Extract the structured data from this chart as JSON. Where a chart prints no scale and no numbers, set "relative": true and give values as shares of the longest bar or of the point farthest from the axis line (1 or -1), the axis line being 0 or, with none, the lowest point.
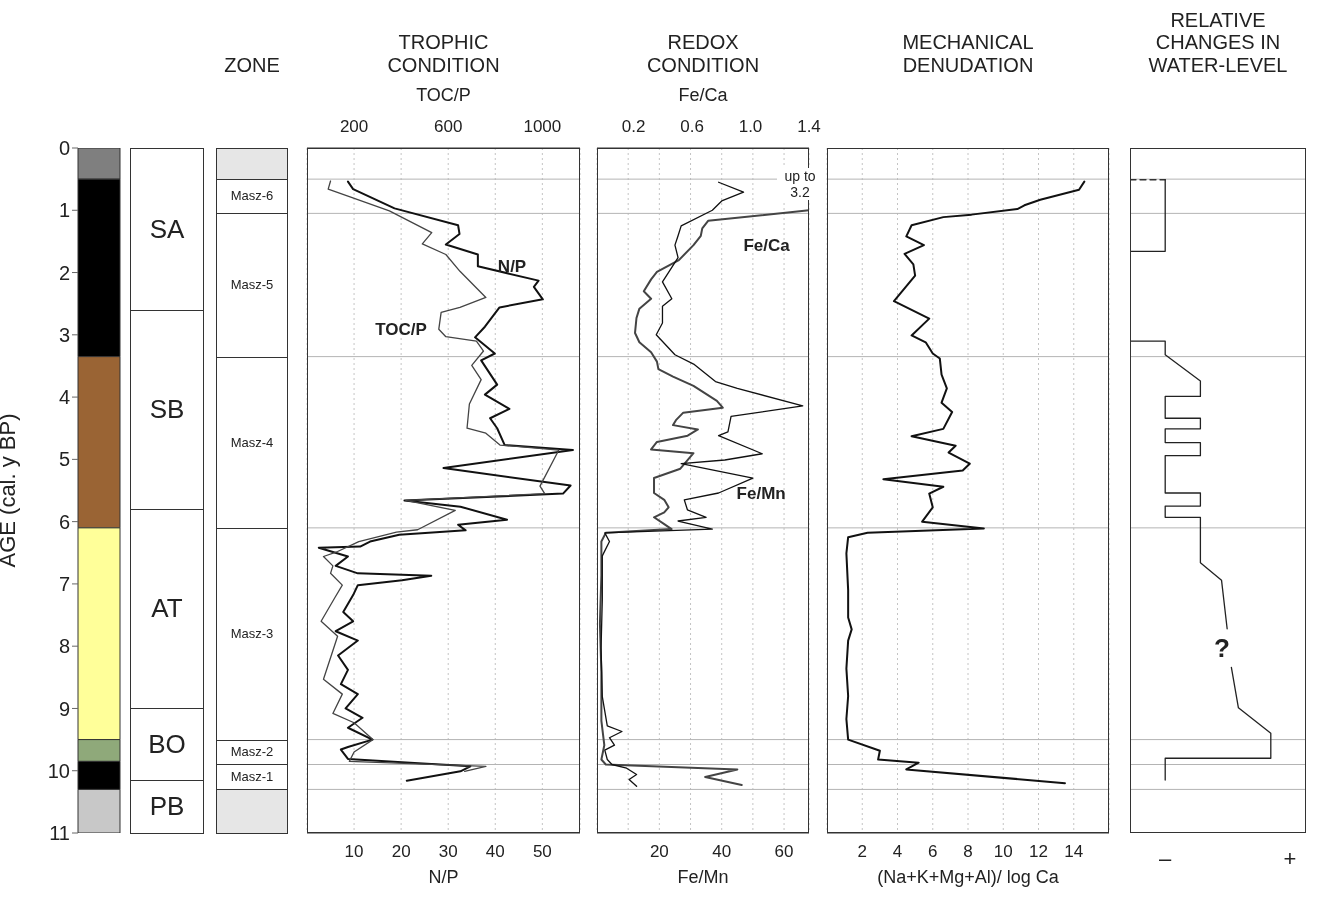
{
  "chart_data": [
    {
      "type": "bar",
      "stacked": true,
      "categories": [
        null
      ],
      "ylabel": "AGE (cal. y BP)",
      "ylim": [
        11,
        0
      ],
      "yticks": [
        0,
        1,
        2,
        3,
        4,
        5,
        6,
        7,
        8,
        9,
        10,
        11
      ],
      "tick_labels": "y",
      "series": [
        {
          "color": "#7f7f7f",
          "values": [
            0.5
          ]
        },
        {
          "color": "#000000",
          "values": [
            2.85
          ]
        },
        {
          "color": "#9a6434",
          "values": [
            2.75
          ]
        },
        {
          "color": "#ffff99",
          "values": [
            3.4
          ]
        },
        {
          "color": "#8fa97a",
          "values": [
            0.35
          ]
        },
        {
          "color": "#000000",
          "values": [
            0.45
          ]
        },
        {
          "color": "#c8c8c8",
          "values": [
            0.7
          ]
        }
      ]
    },
    {
      "type": "other",
      "categories": [
        "SA",
        "SB",
        "AT",
        "BO",
        "PB"
      ]
    },
    {
      "type": "other",
      "title": "ZONE",
      "categories": [
        "Masz-6",
        "Masz-5",
        "Masz-4",
        "Masz-3",
        "Masz-2",
        "Masz-1"
      ]
    },
    {
      "type": "line",
      "orientation": "horizontal",
      "title": "TROPHIC CONDITION",
      "xlabel": "N/P",
      "x2label": "TOC/P",
      "xlim": [
        0,
        58
      ],
      "xticks": [
        10,
        20,
        30,
        40,
        50
      ],
      "x2lim": [
        0,
        1160
      ],
      "x2ticks": [
        200,
        600,
        1000
      ],
      "ylim": [
        11,
        0
      ],
      "tick_labels": "x",
      "grid": "x",
      "ref_lines": [
        {
          "axis": "y",
          "value": 0.5,
          "color": "#b4b4b4"
        },
        {
          "axis": "y",
          "value": 1.05,
          "color": "#b4b4b4"
        },
        {
          "axis": "y",
          "value": 3.35,
          "color": "#b4b4b4"
        },
        {
          "axis": "y",
          "value": 6.1,
          "color": "#b4b4b4"
        },
        {
          "axis": "y",
          "value": 9.5,
          "color": "#b4b4b4"
        },
        {
          "axis": "y",
          "value": 9.9,
          "color": "#b4b4b4"
        },
        {
          "axis": "y",
          "value": 10.3,
          "color": "#b4b4b4"
        }
      ],
      "series": [
        {
          "name": "N/P",
          "color": "#111111",
          "x": [
            0.54,
            0.66,
            0.97,
            1.24,
            1.38,
            1.55,
            1.71,
            1.9,
            2.13,
            2.23,
            2.43,
            2.56,
            2.87,
            3.04,
            3.3,
            3.41,
            3.8,
            3.96,
            4.19,
            4.34,
            4.5,
            4.77,
            4.85,
            5.14,
            5.42,
            5.55,
            5.66,
            5.76,
            5.97,
            6.05,
            6.14,
            6.21,
            6.32,
            6.4,
            6.42,
            6.56,
            6.71,
            6.83,
            6.87,
            6.94,
            7.02,
            7.18,
            7.45,
            7.6,
            7.76,
            7.91,
            8.15,
            8.38,
            8.61,
            8.77,
            9.0,
            9.15,
            9.31,
            9.5,
            9.62,
            9.66,
            9.81,
            9.93,
            10.01,
            10.16
          ],
          "values": [
            8.7,
            9.8,
            18.6,
            32.1,
            32.4,
            29.5,
            36.3,
            36.3,
            49.2,
            48.2,
            50.1,
            40.9,
            37.8,
            35.7,
            39.9,
            37,
            40.4,
            37.8,
            43,
            38.9,
            40.4,
            42,
            56.5,
            29,
            56,
            54.4,
            20.7,
            32.6,
            42.5,
            32.1,
            33.7,
            19.6,
            13.4,
            11.3,
            2.5,
            8.7,
            6.1,
            10.8,
            26.4,
            20.2,
            10.8,
            9.8,
            7.7,
            9.8,
            6.1,
            10.8,
            6.6,
            8.7,
            7.2,
            10.8,
            8.2,
            11.8,
            8.7,
            13.9,
            8.7,
            7.2,
            8.7,
            34.7,
            32.6,
            21.2
          ]
        },
        {
          "name": "TOC/P",
          "color": "#444444",
          "axis": "x2",
          "x": [
            0.53,
            0.66,
            0.78,
            1.01,
            1.36,
            1.54,
            1.71,
            1.98,
            2.4,
            2.56,
            2.64,
            2.91,
            3.03,
            3.1,
            3.26,
            3.49,
            3.72,
            4.11,
            4.5,
            4.58,
            4.77,
            4.85,
            5.43,
            5.55,
            5.66,
            5.82,
            6.13,
            6.17,
            6.32,
            6.48,
            6.56,
            6.71,
            6.83,
            7.02,
            7.21,
            7.6,
            7.84,
            8.53,
            8.77,
            9.08,
            9.23,
            9.5,
            9.7,
            9.85,
            9.93,
            10.01
          ],
          "values": [
            100,
            90,
            180,
            350,
            530,
            490,
            590,
            650,
            760,
            650,
            570,
            560,
            590,
            720,
            750,
            700,
            740,
            690,
            680,
            760,
            820,
            1070,
            990,
            1010,
            420,
            630,
            470,
            380,
            220,
            130,
            70,
            110,
            100,
            150,
            120,
            60,
            130,
            70,
            150,
            110,
            200,
            280,
            200,
            180,
            760,
            670
          ]
        }
      ]
    },
    {
      "type": "line",
      "orientation": "horizontal",
      "title": "REDOX CONDITION",
      "xlabel": "Fe/Mn",
      "x2label": "Fe/Ca",
      "xlim": [
        0,
        68
      ],
      "xticks": [
        {
          "value": 10,
          "label": null
        },
        20,
        {
          "value": 30,
          "label": null
        },
        40,
        {
          "value": 50,
          "label": null
        },
        60
      ],
      "x2lim": [
        -0.05,
        1.4
      ],
      "x2ticks": [
        0.2,
        0.6,
        {
          "value": 1,
          "label": "1.0"
        },
        1.4
      ],
      "ylim": [
        11,
        0
      ],
      "tick_labels": "x",
      "grid": "x",
      "annotations": [
        "up to 3.2"
      ],
      "ref_lines": [
        {
          "axis": "y",
          "value": 0.5,
          "color": "#b4b4b4"
        },
        {
          "axis": "y",
          "value": 1.05,
          "color": "#b4b4b4"
        },
        {
          "axis": "y",
          "value": 3.35,
          "color": "#b4b4b4"
        },
        {
          "axis": "y",
          "value": 6.1,
          "color": "#b4b4b4"
        },
        {
          "axis": "y",
          "value": 9.5,
          "color": "#b4b4b4"
        },
        {
          "axis": "y",
          "value": 9.9,
          "color": "#b4b4b4"
        },
        {
          "axis": "y",
          "value": 10.3,
          "color": "#b4b4b4"
        }
      ],
      "series": [
        {
          "name": "Fe/Ca",
          "color": "#444444",
          "axis": "x2",
          "x": [
            1.0,
            1.17,
            1.29,
            1.41,
            1.56,
            1.8,
            1.99,
            2.11,
            2.3,
            2.42,
            2.58,
            2.73,
            2.97,
            3.12,
            3.28,
            3.43,
            3.55,
            3.67,
            3.82,
            4.06,
            4.17,
            4.25,
            4.37,
            4.45,
            4.52,
            4.62,
            4.72,
            4.84,
            4.9,
            5.15,
            5.3,
            5.54,
            5.65,
            5.77,
            5.85,
            5.93,
            6.04,
            6.12,
            6.18,
            6.32,
            6.86,
            7.64,
            8.42,
            9.2,
            9.59,
            9.82,
            9.9,
            9.98,
            10.1,
            10.23
          ],
          "values": [
            1.4,
            0.71,
            0.67,
            0.66,
            0.61,
            0.51,
            0.36,
            0.32,
            0.27,
            0.32,
            0.24,
            0.22,
            0.21,
            0.24,
            0.32,
            0.36,
            0.37,
            0.47,
            0.61,
            0.77,
            0.81,
            0.54,
            0.49,
            0.47,
            0.64,
            0.57,
            0.36,
            0.32,
            0.61,
            0.52,
            0.34,
            0.34,
            0.41,
            0.44,
            0.41,
            0.34,
            0.41,
            0.46,
            0.01,
            -0.02,
            -0.02,
            -0.03,
            -0.02,
            -0.02,
            0,
            -0.02,
            0.01,
            0.91,
            0.69,
            0.94
          ]
        },
        {
          "name": "Fe/Mn",
          "color": "#111111",
          "x": [
            0.55,
            0.71,
            0.85,
            1.0,
            1.25,
            1.41,
            1.56,
            1.76,
            2.15,
            2.42,
            2.54,
            2.81,
            3.0,
            3.32,
            3.47,
            3.75,
            3.86,
            4.14,
            4.31,
            4.56,
            4.62,
            4.91,
            5.01,
            5.07,
            5.3,
            5.54,
            5.65,
            5.81,
            5.93,
            5.99,
            6.12,
            6.18,
            6.32,
            6.55,
            7.25,
            8.03,
            8.81,
            9.28,
            9.37,
            9.47,
            9.59,
            9.67,
            9.82,
            9.9,
            9.96,
            10.06,
            10.14,
            10.25
          ],
          "values": [
            39,
            47,
            40,
            37,
            27,
            26,
            25,
            26,
            21,
            24,
            21,
            21,
            19,
            25,
            31,
            38,
            45,
            66,
            43,
            42,
            39,
            53,
            41,
            27,
            50,
            39,
            28,
            29,
            35,
            26,
            37,
            2.5,
            4,
            1.7,
            1.7,
            1.3,
            1.7,
            3.3,
            8,
            4,
            5.6,
            2.5,
            3.3,
            4.8,
            9.5,
            12.7,
            10.3,
            12.7
          ]
        }
      ]
    },
    {
      "type": "line",
      "orientation": "horizontal",
      "title": "MECHANICAL DENUDATION",
      "xlabel": "(Na+K+Mg+Al)/ log Ca",
      "xlim": [
        0,
        16
      ],
      "xticks": [
        2,
        4,
        6,
        8,
        10,
        12,
        14
      ],
      "ylim": [
        11,
        0
      ],
      "tick_labels": "x",
      "grid": "x",
      "ref_lines": [
        {
          "axis": "y",
          "value": 0.5,
          "color": "#b4b4b4"
        },
        {
          "axis": "y",
          "value": 1.05,
          "color": "#b4b4b4"
        },
        {
          "axis": "y",
          "value": 3.35,
          "color": "#b4b4b4"
        },
        {
          "axis": "y",
          "value": 6.1,
          "color": "#b4b4b4"
        },
        {
          "axis": "y",
          "value": 9.5,
          "color": "#b4b4b4"
        },
        {
          "axis": "y",
          "value": 9.9,
          "color": "#b4b4b4"
        },
        {
          "axis": "y",
          "value": 10.3,
          "color": "#b4b4b4"
        }
      ],
      "series": [
        {
          "color": "#111111",
          "x": [
            0.54,
            0.67,
            0.83,
            0.92,
            0.98,
            1.07,
            1.11,
            1.24,
            1.42,
            1.56,
            1.7,
            1.87,
            2.05,
            2.46,
            2.74,
            3.01,
            3.12,
            3.3,
            3.38,
            3.64,
            3.86,
            4.09,
            4.24,
            4.51,
            4.63,
            4.78,
            4.89,
            5.07,
            5.18,
            5.32,
            5.44,
            5.55,
            5.77,
            6.0,
            6.11,
            6.18,
            6.25,
            6.51,
            7.1,
            7.54,
            7.73,
            7.91,
            8.36,
            8.8,
            9.17,
            9.5,
            9.68,
            9.82,
            9.87,
            9.98,
            10.2
          ],
          "values": [
            14.6,
            14.3,
            12.1,
            11.2,
            10.8,
            8.2,
            6.6,
            4.8,
            4.5,
            5.5,
            4.4,
            4.9,
            5,
            3.8,
            5.8,
            4.8,
            5.6,
            6,
            6.4,
            6.5,
            6.8,
            6.5,
            7.1,
            6.6,
            4.8,
            7.3,
            6.9,
            8.1,
            7.7,
            3.2,
            6.6,
            5.8,
            6,
            5.4,
            8.9,
            2.3,
            1.2,
            1.1,
            1.2,
            1.2,
            1.4,
            1.2,
            1.1,
            1.2,
            1.1,
            1.2,
            3,
            2.9,
            5.2,
            4.5,
            13.5
          ]
        }
      ]
    },
    {
      "type": "line",
      "orientation": "horizontal",
      "relative": true,
      "title": "RELATIVE CHANGES IN WATER-LEVEL",
      "ylim": [
        11,
        0
      ],
      "annotations": [
        "–",
        "+",
        "?"
      ],
      "ref_lines": [
        {
          "axis": "y",
          "value": 0.5,
          "color": "#b4b4b4"
        },
        {
          "axis": "y",
          "value": 1.05,
          "color": "#b4b4b4"
        },
        {
          "axis": "y",
          "value": 3.35,
          "color": "#b4b4b4"
        },
        {
          "axis": "y",
          "value": 6.1,
          "color": "#b4b4b4"
        },
        {
          "axis": "y",
          "value": 9.5,
          "color": "#b4b4b4"
        },
        {
          "axis": "y",
          "value": 9.9,
          "color": "#b4b4b4"
        },
        {
          "axis": "y",
          "value": 10.3,
          "color": "#b4b4b4"
        }
      ],
      "series": [
        {
          "color": "#333333",
          "line_style": "dashed",
          "x": [
            0.51,
            0.51
          ],
          "values": [
            0,
            0.25
          ]
        },
        {
          "color": "#222222",
          "x": [
            0.51,
            1.66,
            1.66,
            3.1,
            3.1,
            3.32,
            3.74,
            3.99,
            3.99,
            4.34,
            4.34,
            4.51,
            4.51,
            4.73,
            4.73,
            4.94,
            4.94,
            5.54,
            5.54,
            5.75,
            5.75,
            5.93,
            5.93,
            6.66,
            6.94,
            7.72,
            8.05,
            8.34,
            8.99,
            9.4,
            9.8,
            9.8,
            10.15
          ],
          "values": [
            0.25,
            0.25,
            0,
            0,
            0.25,
            0.25,
            0.5,
            0.5,
            0.25,
            0.25,
            0.5,
            0.5,
            0.25,
            0.25,
            0.5,
            0.5,
            0.25,
            0.25,
            0.5,
            0.5,
            0.25,
            0.25,
            0.5,
            0.5,
            0.65,
            0.69,
            null,
            0.72,
            0.77,
            1,
            1,
            0.25,
            0.25
          ]
        }
      ]
    }
  ]
}
